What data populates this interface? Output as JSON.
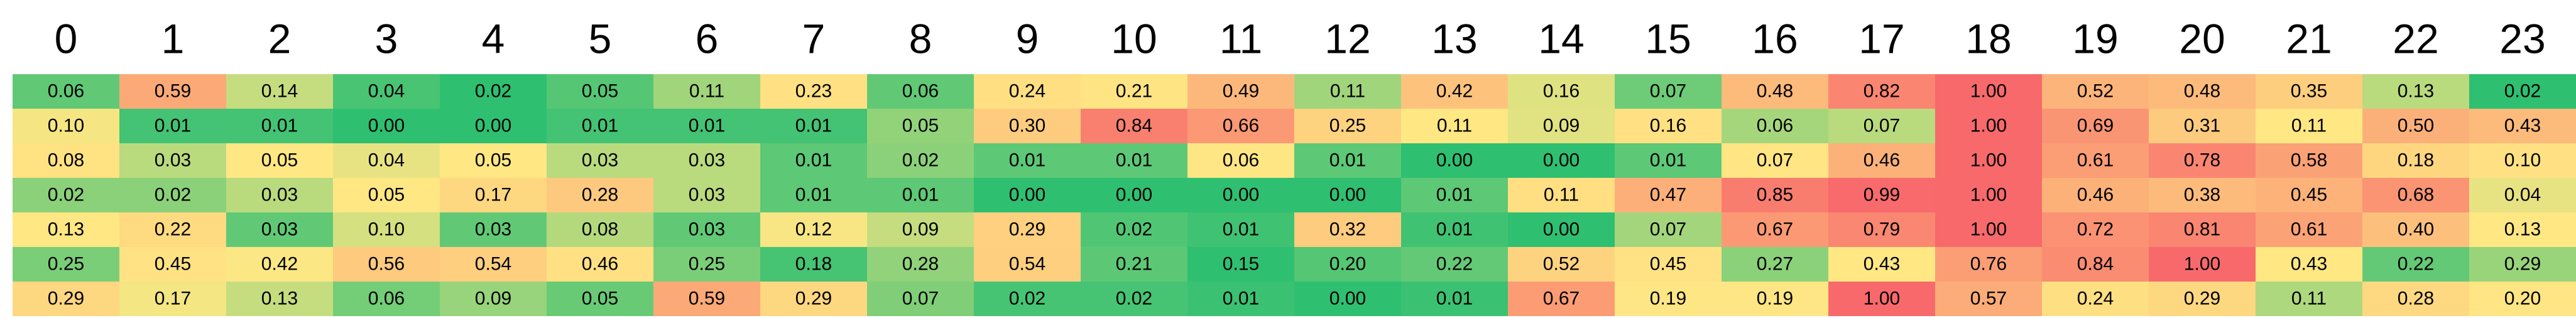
{
  "chart_data": {
    "type": "heatmap",
    "categories": [
      "0",
      "1",
      "2",
      "3",
      "4",
      "5",
      "6",
      "7",
      "8",
      "9",
      "10",
      "11",
      "12",
      "13",
      "14",
      "15",
      "16",
      "17",
      "18",
      "19",
      "20",
      "21",
      "22",
      "23"
    ],
    "colors": [
      "#2fbf71",
      "#ffe884",
      "#f8696b"
    ],
    "series": [
      {
        "values": [
          0.06,
          0.59,
          0.14,
          0.04,
          0.02,
          0.05,
          0.11,
          0.23,
          0.06,
          0.24,
          0.21,
          0.49,
          0.11,
          0.42,
          0.16,
          0.07,
          0.48,
          0.82,
          1.0,
          0.52,
          0.48,
          0.35,
          0.13,
          0.02
        ],
        "value_labels": [
          "0.06",
          "0.59",
          "0.14",
          "0.04",
          "0.02",
          "0.05",
          "0.11",
          "0.23",
          "0.06",
          "0.24",
          "0.21",
          "0.49",
          "0.11",
          "0.42",
          "0.16",
          "0.07",
          "0.48",
          "0.82",
          "1.00",
          "0.52",
          "0.48",
          "0.35",
          "0.13",
          "0.02"
        ]
      },
      {
        "values": [
          0.1,
          0.01,
          0.01,
          0.0,
          0.0,
          0.01,
          0.01,
          0.01,
          0.05,
          0.3,
          0.84,
          0.66,
          0.25,
          0.11,
          0.09,
          0.16,
          0.06,
          0.07,
          1.0,
          0.69,
          0.31,
          0.11,
          0.5,
          0.43
        ],
        "value_labels": [
          "0.10",
          "0.01",
          "0.01",
          "0.00",
          "0.00",
          "0.01",
          "0.01",
          "0.01",
          "0.05",
          "0.30",
          "0.84",
          "0.66",
          "0.25",
          "0.11",
          "0.09",
          "0.16",
          "0.06",
          "0.07",
          "1.00",
          "0.69",
          "0.31",
          "0.11",
          "0.50",
          "0.43"
        ]
      },
      {
        "values": [
          0.08,
          0.03,
          0.05,
          0.04,
          0.05,
          0.03,
          0.03,
          0.01,
          0.02,
          0.01,
          0.01,
          0.06,
          0.01,
          0.0,
          0.0,
          0.01,
          0.07,
          0.46,
          1.0,
          0.61,
          0.78,
          0.58,
          0.18,
          0.1
        ],
        "value_labels": [
          "0.08",
          "0.03",
          "0.05",
          "0.04",
          "0.05",
          "0.03",
          "0.03",
          "0.01",
          "0.02",
          "0.01",
          "0.01",
          "0.06",
          "0.01",
          "0.00",
          "0.00",
          "0.01",
          "0.07",
          "0.46",
          "1.00",
          "0.61",
          "0.78",
          "0.58",
          "0.18",
          "0.10"
        ]
      },
      {
        "values": [
          0.02,
          0.02,
          0.03,
          0.05,
          0.17,
          0.28,
          0.03,
          0.01,
          0.01,
          0.0,
          0.0,
          0.0,
          0.0,
          0.01,
          0.11,
          0.47,
          0.85,
          0.99,
          1.0,
          0.46,
          0.38,
          0.45,
          0.68,
          0.04
        ],
        "value_labels": [
          "0.02",
          "0.02",
          "0.03",
          "0.05",
          "0.17",
          "0.28",
          "0.03",
          "0.01",
          "0.01",
          "0.00",
          "0.00",
          "0.00",
          "0.00",
          "0.01",
          "0.11",
          "0.47",
          "0.85",
          "0.99",
          "1.00",
          "0.46",
          "0.38",
          "0.45",
          "0.68",
          "0.04"
        ]
      },
      {
        "values": [
          0.13,
          0.22,
          0.03,
          0.1,
          0.03,
          0.08,
          0.03,
          0.12,
          0.09,
          0.29,
          0.02,
          0.01,
          0.32,
          0.01,
          0.0,
          0.07,
          0.67,
          0.79,
          1.0,
          0.72,
          0.81,
          0.61,
          0.4,
          0.13
        ],
        "value_labels": [
          "0.13",
          "0.22",
          "0.03",
          "0.10",
          "0.03",
          "0.08",
          "0.03",
          "0.12",
          "0.09",
          "0.29",
          "0.02",
          "0.01",
          "0.32",
          "0.01",
          "0.00",
          "0.07",
          "0.67",
          "0.79",
          "1.00",
          "0.72",
          "0.81",
          "0.61",
          "0.40",
          "0.13"
        ]
      },
      {
        "values": [
          0.25,
          0.45,
          0.42,
          0.56,
          0.54,
          0.46,
          0.25,
          0.18,
          0.28,
          0.54,
          0.21,
          0.15,
          0.2,
          0.22,
          0.52,
          0.45,
          0.27,
          0.43,
          0.76,
          0.84,
          1.0,
          0.43,
          0.22,
          0.29
        ],
        "value_labels": [
          "0.25",
          "0.45",
          "0.42",
          "0.56",
          "0.54",
          "0.46",
          "0.25",
          "0.18",
          "0.28",
          "0.54",
          "0.21",
          "0.15",
          "0.20",
          "0.22",
          "0.52",
          "0.45",
          "0.27",
          "0.43",
          "0.76",
          "0.84",
          "1.00",
          "0.43",
          "0.22",
          "0.29"
        ]
      },
      {
        "values": [
          0.29,
          0.17,
          0.13,
          0.06,
          0.09,
          0.05,
          0.59,
          0.29,
          0.07,
          0.02,
          0.02,
          0.01,
          0.0,
          0.01,
          0.67,
          0.19,
          0.19,
          1.0,
          0.57,
          0.24,
          0.29,
          0.11,
          0.28,
          0.2
        ],
        "value_labels": [
          "0.29",
          "0.17",
          "0.13",
          "0.06",
          "0.09",
          "0.05",
          "0.59",
          "0.29",
          "0.07",
          "0.02",
          "0.02",
          "0.01",
          "0.00",
          "0.01",
          "0.67",
          "0.19",
          "0.19",
          "1.00",
          "0.57",
          "0.24",
          "0.29",
          "0.11",
          "0.28",
          "0.20"
        ]
      }
    ]
  }
}
